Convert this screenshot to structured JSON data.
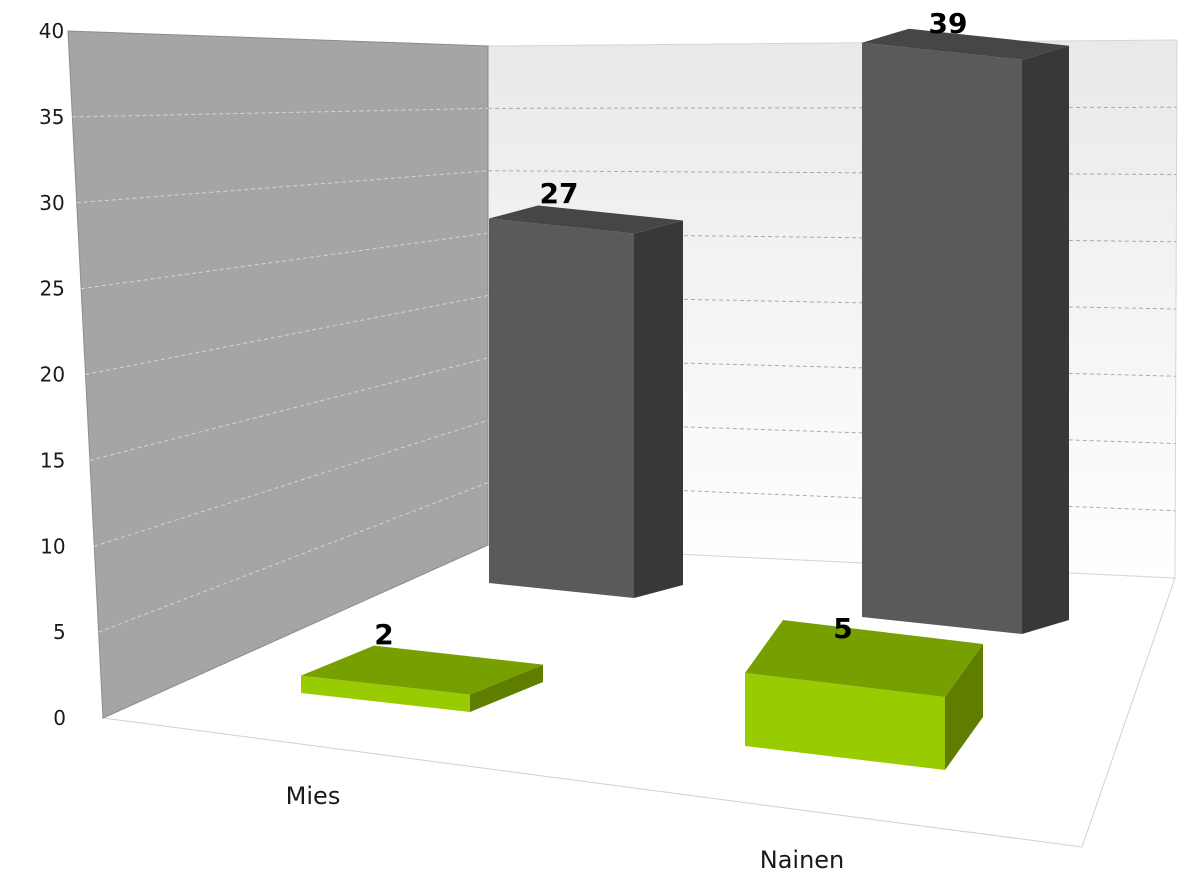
{
  "chart_data": {
    "type": "bar",
    "subtype": "3d-column",
    "categories": [
      "Mies",
      "Nainen"
    ],
    "series": [
      {
        "values": [
          27,
          39
        ],
        "color": "#5a5a5a",
        "depth": "back"
      },
      {
        "values": [
          2,
          5
        ],
        "color": "#99cc00",
        "depth": "front"
      }
    ],
    "ylim": [
      0,
      40
    ],
    "yticks": [
      0,
      5,
      10,
      15,
      20,
      25,
      30,
      35,
      40
    ],
    "grid": true,
    "legend": "none",
    "data_labels": true
  }
}
